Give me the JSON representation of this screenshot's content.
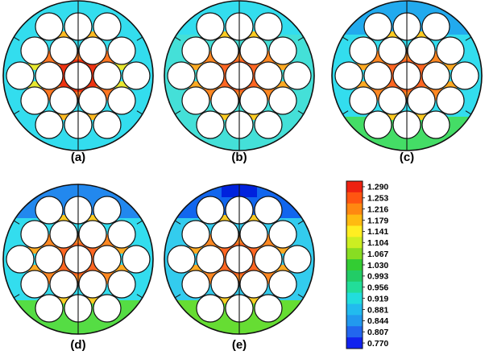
{
  "panels": [
    {
      "label": "(a)",
      "stripes": {
        "top": "#33ddee",
        "mid": "#33ddee",
        "bottom": "#33ddee"
      },
      "center": "#ee3311",
      "ring": "#ff7722",
      "edge": "#ffbb22",
      "edgeSide": "#e8e830"
    },
    {
      "label": "(b)",
      "stripes": {
        "top": "#33ddee",
        "mid": "#44e0d8",
        "bottom": "#44e0d8"
      },
      "center": "#ff6622",
      "ring": "#ff8822",
      "edge": "#ffcc22",
      "edgeSide": "#ffaa22"
    },
    {
      "label": "(c)",
      "stripes": {
        "top": "#22aaee",
        "mid": "#33ddee",
        "bottom": "#44dd66"
      },
      "center": "#ff6622",
      "ring": "#ff8822",
      "edge": "#ffcc22",
      "edgeSide": "#ffaa22"
    },
    {
      "label": "(d)",
      "stripes": {
        "top": "#2288ee",
        "mid": "#33ddee",
        "bottom": "#55dd44"
      },
      "center": "#ff6622",
      "ring": "#ff8822",
      "edge": "#ffcc22",
      "edgeSide": "#ffaa22"
    },
    {
      "label": "(e)",
      "stripes": {
        "top": "#1166ee",
        "mid": "#33ccee",
        "bottom": "#66dd33"
      },
      "center": "#ff6622",
      "ring": "#ff8822",
      "edge": "#ffcc22",
      "edgeSide": "#ffaa22",
      "topCap": "#0022dd"
    }
  ],
  "colorbar": {
    "ticks": [
      "1.290",
      "1.253",
      "1.216",
      "1.179",
      "1.141",
      "1.104",
      "1.067",
      "1.030",
      "0.993",
      "0.956",
      "0.919",
      "0.881",
      "0.844",
      "0.807",
      "0.770"
    ],
    "colors": [
      "#ee2211",
      "#ff5511",
      "#ff8811",
      "#ffbb11",
      "#ffee22",
      "#ccee22",
      "#88dd22",
      "#33cc33",
      "#22cc66",
      "#22dd99",
      "#22dddd",
      "#22bbee",
      "#2299ee",
      "#2266ee",
      "#1122ee"
    ]
  }
}
